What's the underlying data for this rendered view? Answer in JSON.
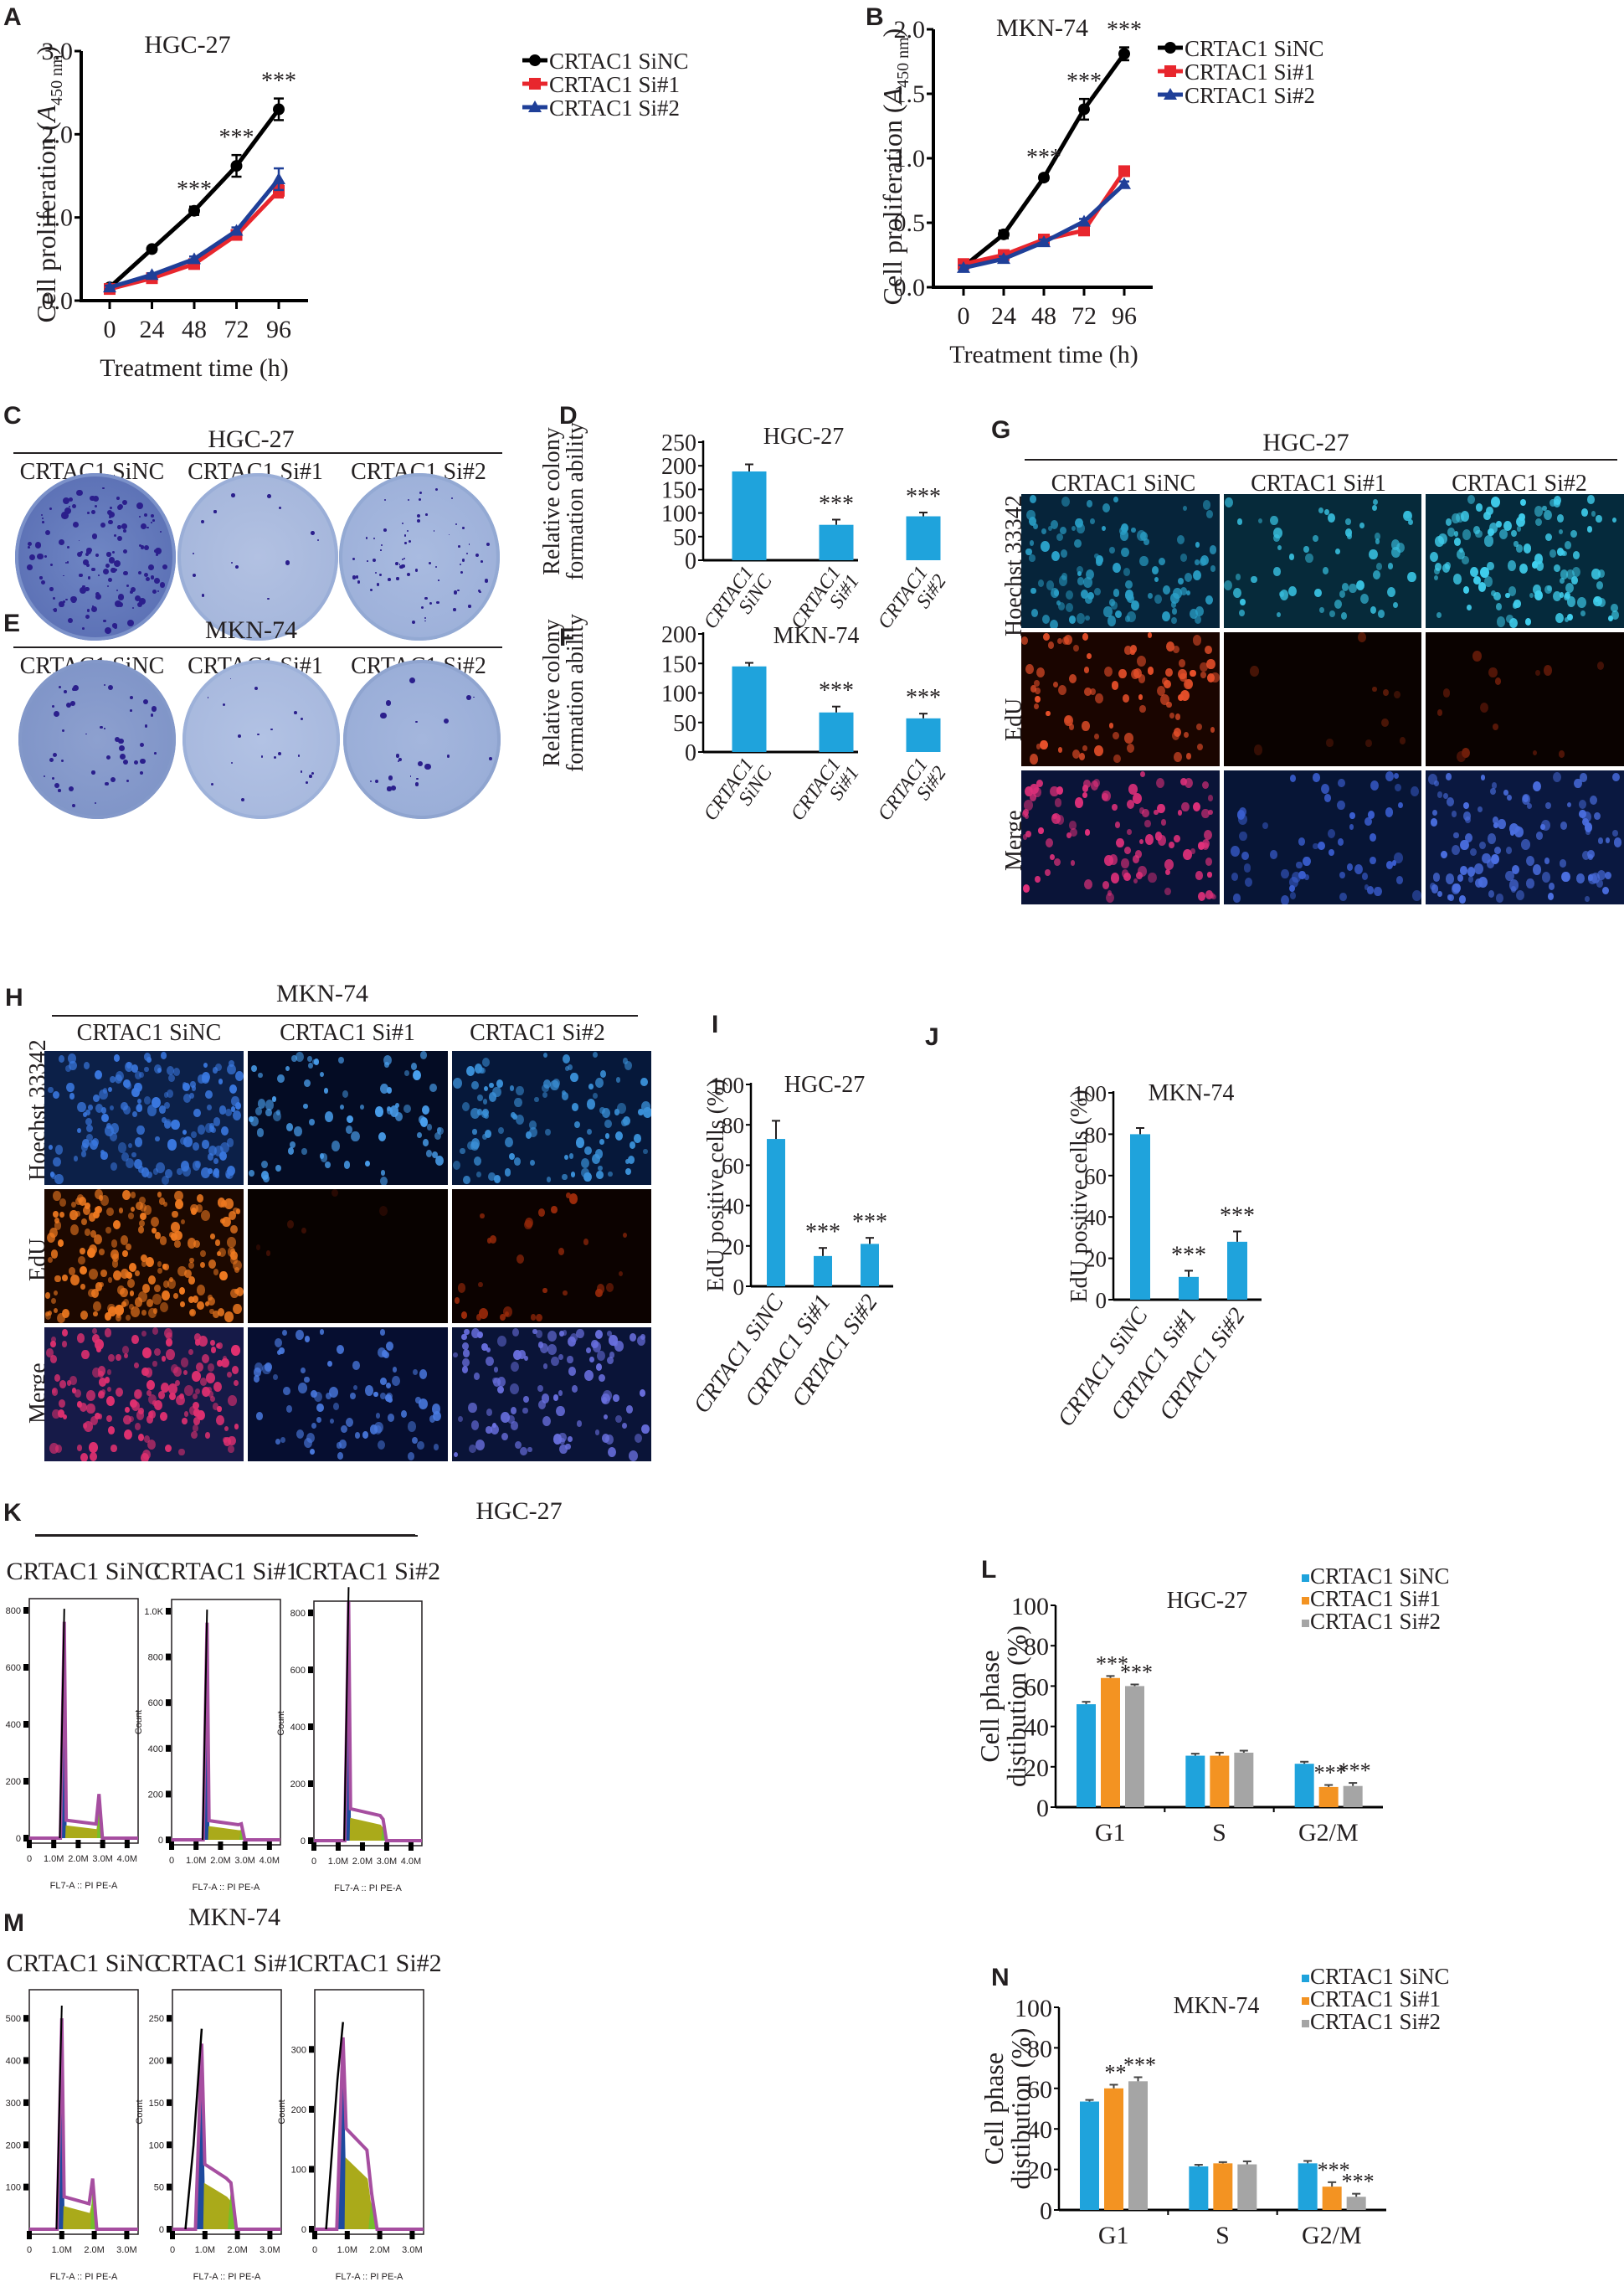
{
  "panels": {
    "A": "A",
    "B": "B",
    "C": "C",
    "D": "D",
    "E": "E",
    "F": "F",
    "G": "G",
    "H": "H",
    "I": "I",
    "J": "J",
    "K": "K",
    "L": "L",
    "M": "M",
    "N": "N"
  },
  "groups": [
    "CRTAC1 SiNC",
    "CRTAC1 Si#1",
    "CRTAC1 Si#2"
  ],
  "colony": {
    "C": {
      "title": "HGC-27",
      "labels": [
        "CRTAC1 SiNC",
        "CRTAC1 Si#1",
        "CRTAC1 Si#2"
      ]
    },
    "E": {
      "title": "MKN-74",
      "labels": [
        "CRTAC1 SiNC",
        "CRTAC1 Si#1",
        "CRTAC1 Si#2"
      ]
    }
  },
  "edu_images": {
    "G": {
      "title": "HGC-27",
      "cols": [
        "CRTAC1 SiNC",
        "CRTAC1 Si#1",
        "CRTAC1 Si#2"
      ],
      "rows": [
        "Hoechst 33342",
        "EdU",
        "Merge"
      ]
    },
    "H": {
      "title": "MKN-74",
      "cols": [
        "CRTAC1 SiNC",
        "CRTAC1 Si#1",
        "CRTAC1 Si#2"
      ],
      "rows": [
        "Hoechst 33342",
        "EdU",
        "Merge"
      ]
    }
  },
  "flow": {
    "K": {
      "title": "HGC-27",
      "cols": [
        "CRTAC1 SiNC",
        "CRTAC1 Si#1",
        "CRTAC1 Si#2"
      ],
      "ylabel": "Count",
      "xlabel": "FL7-A :: PI PE-A",
      "xticks": [
        "0",
        "1.0M",
        "2.0M",
        "3.0M",
        "4.0M"
      ],
      "yticks": [
        [
          "0",
          "200",
          "400",
          "600",
          "800"
        ],
        [
          "0",
          "200",
          "400",
          "600",
          "800",
          "1.0K"
        ],
        [
          "0",
          "200",
          "400",
          "600",
          "800"
        ]
      ]
    },
    "M": {
      "title": "MKN-74",
      "cols": [
        "CRTAC1 SiNC",
        "CRTAC1 Si#1",
        "CRTAC1 Si#2"
      ],
      "ylabel": "Count",
      "xlabel": "FL7-A :: PI PE-A",
      "xticks": [
        "0",
        "1.0M",
        "2.0M",
        "3.0M"
      ],
      "yticks": [
        [
          "100",
          "200",
          "300",
          "400",
          "500"
        ],
        [
          "0",
          "50",
          "100",
          "150",
          "200",
          "250"
        ],
        [
          "0",
          "100",
          "200",
          "300"
        ]
      ]
    }
  },
  "colors": {
    "black": "#000000",
    "red": "#e8262d",
    "blue": "#1f3f98",
    "bar_blue": "#1fa3dc",
    "bar_orange": "#f39322",
    "bar_gray": "#a5a5a5",
    "flow_magenta": "#a64ea0",
    "flow_blue": "#1e4a9e",
    "flow_olive": "#aaaa1a",
    "flow_green": "#74c02a"
  },
  "chart_data": [
    {
      "id": "A",
      "type": "line",
      "title": "HGC-27",
      "xlabel": "Treatment time (h)",
      "ylabel": "Cell proliferation (A450 nm)",
      "ylabel_main": "Cell proliferation (",
      "ylabel_italic": "A",
      "ylabel_sub": "450 nm",
      "ylabel_end": ")",
      "x": [
        0,
        24,
        48,
        72,
        96
      ],
      "xticks": [
        "0",
        "24",
        "48",
        "72",
        "96"
      ],
      "ylim": [
        0,
        3.0
      ],
      "yticks": [
        "0.0",
        "1.0",
        "2.0",
        "3.0"
      ],
      "ytick_values": [
        0,
        1,
        2,
        3
      ],
      "series": [
        {
          "name": "CRTAC1 SiNC",
          "color": "#000000",
          "marker": "circle",
          "values": [
            0.16,
            0.62,
            1.08,
            1.62,
            2.3
          ],
          "errors": [
            0.02,
            0.03,
            0.05,
            0.13,
            0.13
          ]
        },
        {
          "name": "CRTAC1 Si#1",
          "color": "#e8262d",
          "marker": "square",
          "values": [
            0.14,
            0.27,
            0.44,
            0.79,
            1.32
          ],
          "errors": [
            0.02,
            0.02,
            0.03,
            0.05,
            0.08
          ]
        },
        {
          "name": "CRTAC1 Si#2",
          "color": "#1f3f98",
          "marker": "triangle",
          "values": [
            0.16,
            0.31,
            0.5,
            0.84,
            1.46
          ],
          "errors": [
            0.02,
            0.02,
            0.03,
            0.04,
            0.13
          ]
        }
      ],
      "annotations": [
        {
          "x": 48,
          "text": "***"
        },
        {
          "x": 72,
          "text": "***"
        },
        {
          "x": 96,
          "text": "***"
        }
      ],
      "legend": "right"
    },
    {
      "id": "B",
      "type": "line",
      "title": "MKN-74",
      "xlabel": "Treatment time (h)",
      "ylabel": "Cell proliferation (A450 nm)",
      "ylabel_main": "Cell proliferation (",
      "ylabel_italic": "A",
      "ylabel_sub": "450 nm",
      "ylabel_end": ")",
      "x": [
        0,
        24,
        48,
        72,
        96
      ],
      "xticks": [
        "0",
        "24",
        "48",
        "72",
        "96"
      ],
      "ylim": [
        0,
        2.0
      ],
      "yticks": [
        "0.0",
        "0.5",
        "1.0",
        "1.5",
        "2.0"
      ],
      "ytick_values": [
        0,
        0.5,
        1,
        1.5,
        2
      ],
      "series": [
        {
          "name": "CRTAC1 SiNC",
          "color": "#000000",
          "marker": "circle",
          "values": [
            0.16,
            0.41,
            0.85,
            1.38,
            1.81
          ],
          "errors": [
            0.02,
            0.03,
            0.02,
            0.08,
            0.05
          ]
        },
        {
          "name": "CRTAC1 Si#1",
          "color": "#e8262d",
          "marker": "square",
          "values": [
            0.18,
            0.25,
            0.37,
            0.44,
            0.9
          ],
          "errors": [
            0.02,
            0.02,
            0.02,
            0.03,
            0.03
          ]
        },
        {
          "name": "CRTAC1 Si#2",
          "color": "#1f3f98",
          "marker": "triangle",
          "values": [
            0.15,
            0.22,
            0.35,
            0.51,
            0.8
          ],
          "errors": [
            0.02,
            0.02,
            0.02,
            0.02,
            0.02
          ]
        }
      ],
      "annotations": [
        {
          "x": 48,
          "text": "***"
        },
        {
          "x": 72,
          "text": "***"
        },
        {
          "x": 96,
          "text": "***"
        }
      ],
      "legend": "right"
    },
    {
      "id": "D",
      "type": "bar",
      "title": "HGC-27",
      "ylabel": "Relative colony formation ability",
      "ylabel_lines": [
        "Relative colony",
        "formation ability"
      ],
      "categories": [
        "CRTAC1 SiNC",
        "CRTAC1 Si#1",
        "CRTAC1 Si#2"
      ],
      "category_lines": [
        [
          "CRTAC1",
          "SiNC"
        ],
        [
          "CRTAC1",
          "Si#1"
        ],
        [
          "CRTAC1",
          "Si#2"
        ]
      ],
      "values": [
        188,
        75,
        93
      ],
      "errors": [
        15,
        11,
        8
      ],
      "annotations": [
        "",
        "***",
        "***"
      ],
      "ylim": [
        0,
        250
      ],
      "yticks": [
        "0",
        "50",
        "100",
        "150",
        "200",
        "250"
      ],
      "ytick_values": [
        0,
        50,
        100,
        150,
        200,
        250
      ]
    },
    {
      "id": "F",
      "type": "bar",
      "title": "MKN-74",
      "ylabel": "Relative colony formation ability",
      "ylabel_lines": [
        "Relative colony",
        "formation ability"
      ],
      "categories": [
        "CRTAC1 SiNC",
        "CRTAC1 Si#1",
        "CRTAC1 Si#2"
      ],
      "category_lines": [
        [
          "CRTAC1",
          "SiNC"
        ],
        [
          "CRTAC1",
          "Si#1"
        ],
        [
          "CRTAC1",
          "Si#2"
        ]
      ],
      "values": [
        145,
        67,
        57
      ],
      "errors": [
        6,
        10,
        8
      ],
      "annotations": [
        "",
        "***",
        "***"
      ],
      "ylim": [
        0,
        200
      ],
      "yticks": [
        "0",
        "50",
        "100",
        "150",
        "200"
      ],
      "ytick_values": [
        0,
        50,
        100,
        150,
        200
      ]
    },
    {
      "id": "I",
      "type": "bar",
      "title": "HGC-27",
      "ylabel": "EdU positive cells (%)",
      "categories": [
        "CRTAC1 SiNC",
        "CRTAC1 Si#1",
        "CRTAC1 Si#2"
      ],
      "values": [
        73,
        15,
        21
      ],
      "errors": [
        9,
        4,
        3
      ],
      "annotations": [
        "",
        "***",
        "***"
      ],
      "ylim": [
        0,
        100
      ],
      "yticks": [
        "0",
        "20",
        "40",
        "60",
        "80",
        "100"
      ],
      "ytick_values": [
        0,
        20,
        40,
        60,
        80,
        100
      ]
    },
    {
      "id": "J",
      "type": "bar",
      "title": "MKN-74",
      "ylabel": "EdU positive cells (%)",
      "categories": [
        "CRTAC1 SiNC",
        "CRTAC1 Si#1",
        "CRTAC1 Si#2"
      ],
      "values": [
        80,
        11,
        28
      ],
      "errors": [
        3,
        3,
        5
      ],
      "annotations": [
        "",
        "***",
        "***"
      ],
      "ylim": [
        0,
        100
      ],
      "yticks": [
        "0",
        "20",
        "40",
        "60",
        "80",
        "100"
      ],
      "ytick_values": [
        0,
        20,
        40,
        60,
        80,
        100
      ]
    },
    {
      "id": "L",
      "type": "bar",
      "title": "HGC-27",
      "ylabel": "Cell phase distibution (%)",
      "ylabel_lines": [
        "Cell phase",
        "distibution (%)"
      ],
      "categories": [
        "G1",
        "S",
        "G2/M"
      ],
      "series": [
        {
          "name": "CRTAC1 SiNC",
          "color": "#1fa3dc",
          "values": [
            51,
            25.5,
            21.5
          ],
          "errors": [
            1.2,
            1.0,
            1.0
          ],
          "annotations": [
            "",
            "",
            ""
          ]
        },
        {
          "name": "CRTAC1 Si#1",
          "color": "#f39322",
          "values": [
            64,
            25.5,
            10
          ],
          "errors": [
            1.0,
            1.5,
            1.0
          ],
          "annotations": [
            "***",
            "",
            "***"
          ]
        },
        {
          "name": "CRTAC1 Si#2",
          "color": "#a5a5a5",
          "values": [
            60,
            27,
            10.5
          ],
          "errors": [
            0.8,
            1.0,
            1.5
          ],
          "annotations": [
            "***",
            "",
            "***"
          ]
        }
      ],
      "ylim": [
        0,
        100
      ],
      "yticks": [
        "0",
        "20",
        "40",
        "60",
        "80",
        "100"
      ],
      "ytick_values": [
        0,
        20,
        40,
        60,
        80,
        100
      ],
      "legend": "top-right"
    },
    {
      "id": "N",
      "type": "bar",
      "title": "MKN-74",
      "ylabel": "Cell phase distibution (%)",
      "ylabel_lines": [
        "Cell phase",
        "distibution (%)"
      ],
      "categories": [
        "G1",
        "S",
        "G2/M"
      ],
      "series": [
        {
          "name": "CRTAC1 SiNC",
          "color": "#1fa3dc",
          "values": [
            53.5,
            21.5,
            23
          ],
          "errors": [
            0.8,
            0.8,
            1.2
          ],
          "annotations": [
            "",
            "",
            ""
          ]
        },
        {
          "name": "CRTAC1 Si#1",
          "color": "#f39322",
          "values": [
            60,
            23,
            11.5
          ],
          "errors": [
            1.8,
            0.6,
            2.2
          ],
          "annotations": [
            "**",
            "",
            "***"
          ]
        },
        {
          "name": "CRTAC1 Si#2",
          "color": "#a5a5a5",
          "values": [
            63.5,
            22.5,
            6.5
          ],
          "errors": [
            2.0,
            1.5,
            1.5
          ],
          "annotations": [
            "***",
            "",
            "***"
          ]
        }
      ],
      "ylim": [
        0,
        100
      ],
      "yticks": [
        "0",
        "20",
        "40",
        "60",
        "80",
        "100"
      ],
      "ytick_values": [
        0,
        20,
        40,
        60,
        80,
        100
      ],
      "legend": "top-right"
    }
  ]
}
